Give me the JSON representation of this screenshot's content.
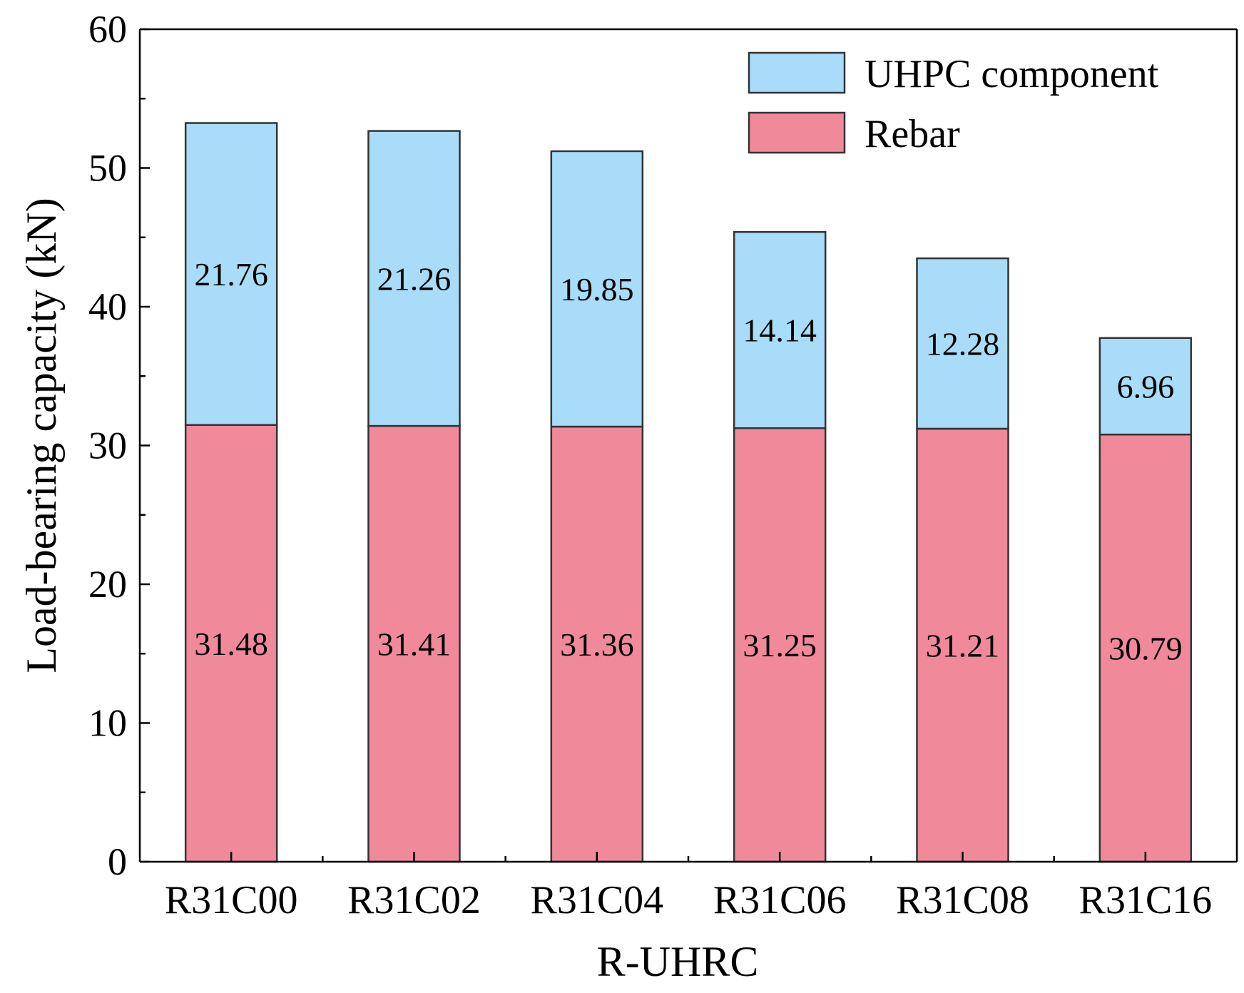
{
  "chart_data": {
    "type": "bar",
    "stacked": true,
    "xlabel": "R-UHRC",
    "ylabel": "Load-bearing capacity (kN)",
    "ylim": [
      0,
      60
    ],
    "yticks": [
      0,
      10,
      20,
      30,
      40,
      50,
      60
    ],
    "grid": false,
    "legend_position": "top-right",
    "categories": [
      "R31C00",
      "R31C02",
      "R31C04",
      "R31C06",
      "R31C08",
      "R31C16"
    ],
    "series": [
      {
        "name": "Rebar",
        "color": "#f08a9b",
        "values": [
          31.48,
          31.41,
          31.36,
          31.25,
          31.21,
          30.79
        ],
        "labels": [
          "31.48",
          "31.41",
          "31.36",
          "31.25",
          "31.21",
          "30.79"
        ]
      },
      {
        "name": "UHPC component",
        "color": "#a8dcf8",
        "values": [
          21.76,
          21.26,
          19.85,
          14.14,
          12.28,
          6.96
        ],
        "labels": [
          "21.76",
          "21.26",
          "19.85",
          "14.14",
          "12.28",
          "6.96"
        ]
      }
    ],
    "legend_order": [
      1,
      0
    ],
    "stroke_color": "#333333"
  }
}
